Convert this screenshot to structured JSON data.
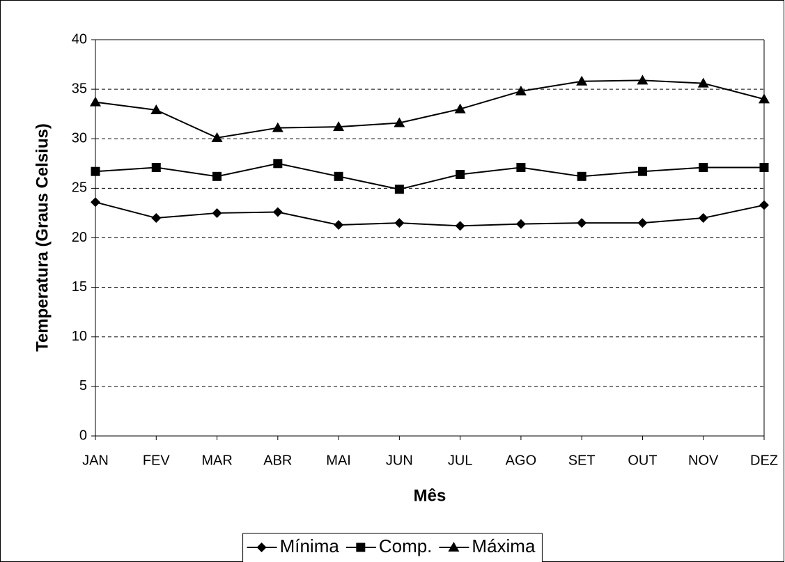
{
  "chart_data": {
    "type": "line",
    "x_label": "Mês",
    "y_label": "Temperatura (Graus Celsius)",
    "categories": [
      "JAN",
      "FEV",
      "MAR",
      "ABR",
      "MAI",
      "JUN",
      "JUL",
      "AGO",
      "SET",
      "OUT",
      "NOV",
      "DEZ"
    ],
    "series": [
      {
        "name": "Mínima",
        "color": "#000000",
        "marker": "diamond",
        "values": [
          23.6,
          22.0,
          22.5,
          22.6,
          21.3,
          21.5,
          21.2,
          21.4,
          21.5,
          21.5,
          22.0,
          23.3
        ]
      },
      {
        "name": "Comp.",
        "color": "#000000",
        "marker": "square",
        "values": [
          26.7,
          27.1,
          26.2,
          27.5,
          26.2,
          24.9,
          26.4,
          27.1,
          26.2,
          26.7,
          27.1,
          27.1
        ]
      },
      {
        "name": "Máxima",
        "color": "#000000",
        "marker": "triangle",
        "values": [
          33.7,
          32.9,
          30.1,
          31.1,
          31.2,
          31.6,
          33.0,
          34.8,
          35.8,
          35.9,
          35.6,
          34.0
        ]
      }
    ],
    "ylim": [
      0,
      40
    ],
    "yticks": [
      0,
      5,
      10,
      15,
      20,
      25,
      30,
      35,
      40
    ],
    "grid": true,
    "legend": "bottom"
  }
}
